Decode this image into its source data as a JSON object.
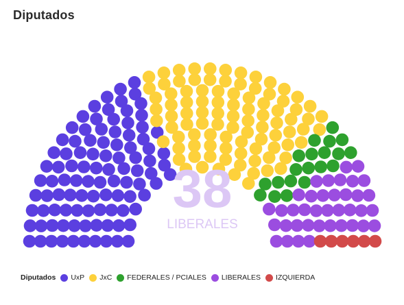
{
  "title": "Diputados",
  "chart_data": {
    "type": "parliament",
    "title": "Diputados",
    "total_seats": 257,
    "series": [
      {
        "name": "UxP",
        "value": 99,
        "color": "#5b3fe0"
      },
      {
        "name": "JxC",
        "value": 94,
        "color": "#fdd13b"
      },
      {
        "name": "FEDERALES / PCIALES",
        "value": 20,
        "color": "#2ea12e"
      },
      {
        "name": "LIBERALES",
        "value": 38,
        "color": "#9b4de0"
      },
      {
        "name": "IZQUIERDA",
        "value": 6,
        "color": "#d24a4a"
      }
    ],
    "highlight": {
      "value": "38",
      "label": "LIBERALES",
      "color": "#dcc7f5"
    },
    "legend": {
      "title": "Diputados",
      "position": "bottom-left"
    }
  }
}
